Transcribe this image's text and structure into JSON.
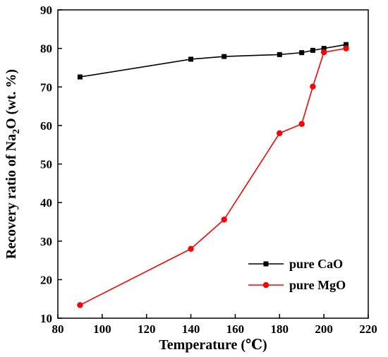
{
  "chart_data": {
    "type": "line",
    "xlabel": "Temperature (℃)",
    "ylabel_main": "Recovery ratio of Na",
    "ylabel_sub": "2",
    "ylabel_tail": "O  (wt. %)",
    "xlim": [
      80,
      220
    ],
    "ylim": [
      10,
      90
    ],
    "xticks": [
      80,
      100,
      120,
      140,
      160,
      180,
      200,
      220
    ],
    "yticks": [
      10,
      20,
      30,
      40,
      50,
      60,
      70,
      80,
      90
    ],
    "grid": false,
    "legend_position": "bottom-right",
    "series": [
      {
        "name": "pure CaO",
        "color": "#000000",
        "marker": "square",
        "x": [
          90,
          140,
          155,
          180,
          190,
          195,
          200,
          210
        ],
        "y": [
          72.6,
          77.2,
          77.9,
          78.4,
          78.9,
          79.5,
          80.0,
          81.0
        ]
      },
      {
        "name": "pure MgO",
        "color": "#ff0000",
        "marker": "circle",
        "x": [
          90,
          140,
          155,
          180,
          190,
          195,
          200,
          210
        ],
        "y": [
          13.4,
          28.0,
          35.6,
          58.0,
          60.4,
          70.1,
          79.0,
          80.0
        ]
      }
    ]
  }
}
